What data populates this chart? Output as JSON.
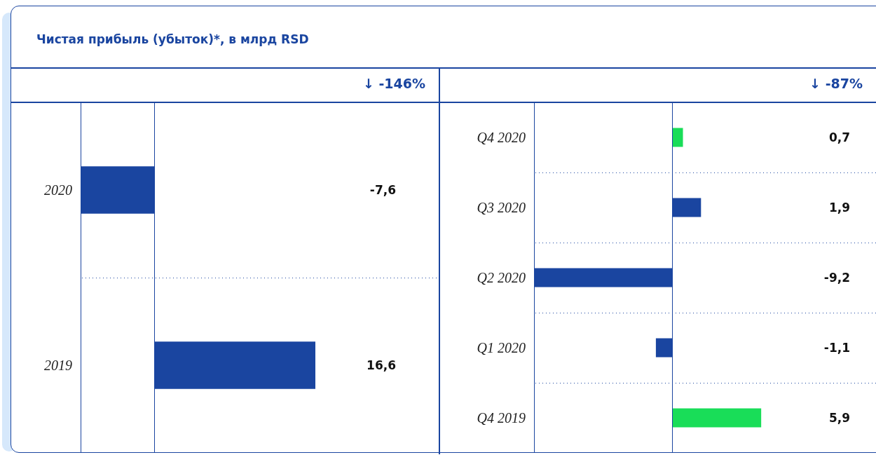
{
  "chart_data": [
    {
      "type": "bar",
      "orientation": "horizontal",
      "title": "Чистая прибыль (убыток)*, в млрд RSD",
      "annotations": [
        "↓ -146%"
      ],
      "categories": [
        "2020",
        "2019"
      ],
      "values": [
        -7.6,
        16.6
      ],
      "colors": [
        "#1a45a0",
        "#1a45a0"
      ],
      "value_labels": [
        "-7,6",
        "16,6"
      ],
      "ref_lines": [
        {
          "axis": "x",
          "value": 0
        }
      ]
    },
    {
      "type": "bar",
      "orientation": "horizontal",
      "annotations": [
        "↓ -87%"
      ],
      "categories": [
        "Q4 2020",
        "Q3 2020",
        "Q2 2020",
        "Q1 2020",
        "Q4 2019"
      ],
      "values": [
        0.7,
        1.9,
        -9.2,
        -1.1,
        5.9
      ],
      "colors": [
        "#19dd58",
        "#1a45a0",
        "#1a45a0",
        "#1a45a0",
        "#19dd58"
      ],
      "value_labels": [
        "0,7",
        "1,9",
        "-9,2",
        "-1,1",
        "5,9"
      ],
      "ref_lines": [
        {
          "axis": "x",
          "value": 0
        }
      ]
    }
  ]
}
